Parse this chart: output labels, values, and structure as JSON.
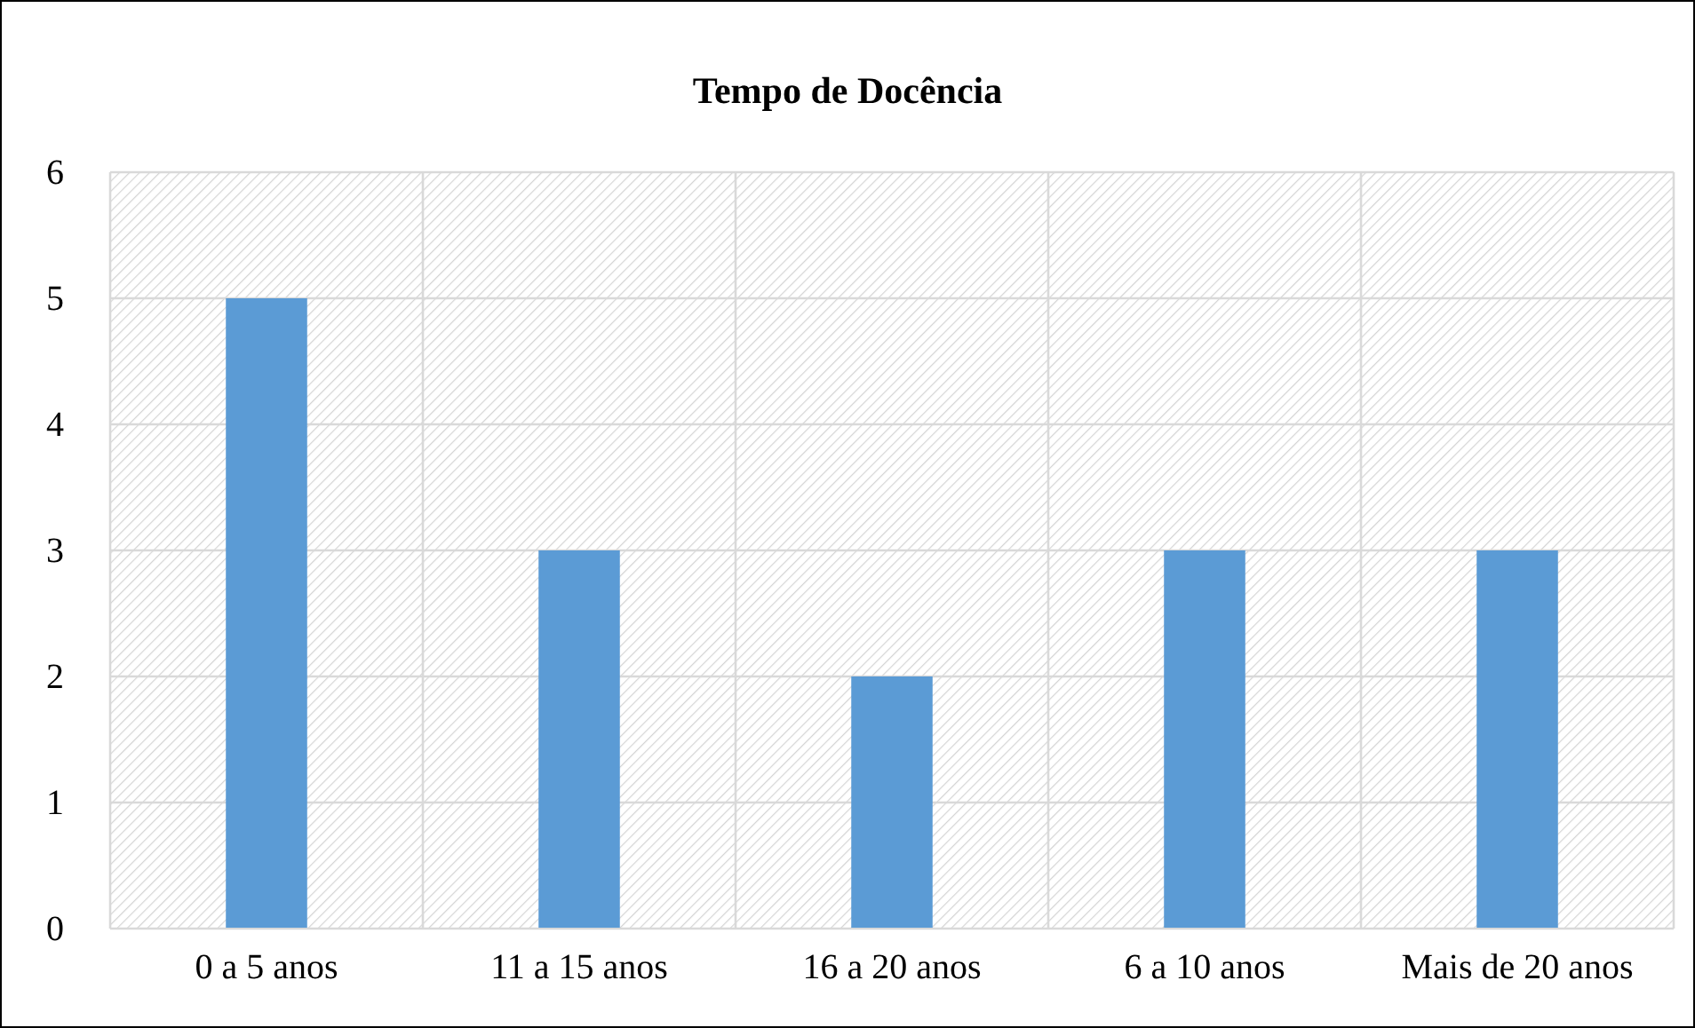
{
  "chart_data": {
    "type": "bar",
    "title": "Tempo de Docência",
    "categories": [
      "0 a 5 anos",
      "11 a 15 anos",
      "16 a 20 anos",
      "6 a 10 anos",
      "Mais de 20 anos"
    ],
    "values": [
      5,
      3,
      2,
      3,
      3
    ],
    "color": "#5b9bd5",
    "ylim": [
      0,
      6
    ],
    "yticks": [
      0,
      1,
      2,
      3,
      4,
      5,
      6
    ],
    "grid": true
  }
}
